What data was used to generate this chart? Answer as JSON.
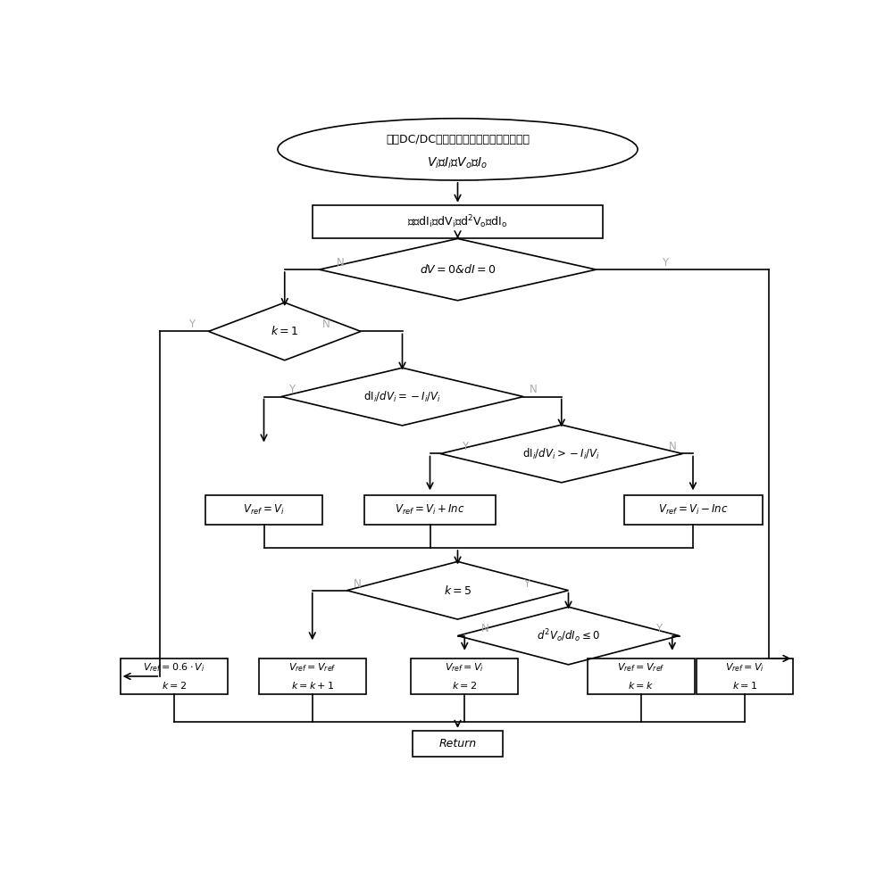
{
  "fig_width": 10.0,
  "fig_height": 9.84,
  "bg_color": "#ffffff",
  "line_color": "#000000",
  "text_color": "#000000",
  "label_color": "#aaaaaa",
  "lw": 1.2,
  "ellipse_line1": "记录DC/DC变化器的输入、输出电压、电流",
  "ellipse_line2": "$V_i$、$I_i$、$V_o$、$I_o$",
  "box1_text": "计算$\\mathrm{dI_i}$、$\\mathrm{dV_i}$、$\\mathrm{d^2V_o}$、$\\mathrm{dI_o}$",
  "d1_text": "$dV=0$&$dI=0$",
  "d2_text": "$k=1$",
  "d3_text": "$\\mathrm{dI}_i/dV_i=-I_i/V_i$",
  "d4_text": "$\\mathrm{dI}_i/dV_i>-I_i/V_i$",
  "d5_text": "$k=5$",
  "d6_text": "$d^2V_o/dI_o\\leq 0$",
  "bv1_text": "$V_{ref}=V_i$",
  "bv2_text": "$V_{ref}=V_i+Inc$",
  "bv3_text": "$V_{ref}=V_i-Inc$",
  "bb1_l1": "$V_{ref}=0.6\\cdot V_i$",
  "bb1_l2": "$k=2$",
  "bb2_l1": "$V_{ref}=V_{ref}$",
  "bb2_l2": "$k=k+1$",
  "bb3_l1": "$V_{ref}=V_i$",
  "bb3_l2": "$k=2$",
  "bb4_l1": "$V_{ref}=V_{ref}$",
  "bb4_l2": "$k=k$",
  "bb5_l1": "$V_{ref}=V_i$",
  "bb5_l2": "$k=1$",
  "ret_text": "Return",
  "xmin": 0,
  "xmax": 10,
  "ymin": 0,
  "ymax": 9.84
}
